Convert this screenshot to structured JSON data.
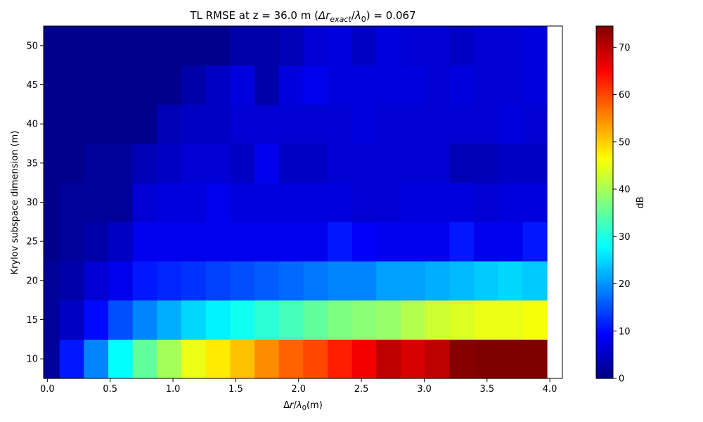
{
  "chart_data": {
    "type": "heatmap",
    "title": "TL RMSE at z = 36.0 m (Δr_exact/λ₀) = 0.067",
    "title_parts": {
      "prefix": "TL RMSE at z = 36.0 m (",
      "delta": "Δ",
      "r": "r",
      "sub_exact": "exact",
      "slash": "/",
      "lambda": "λ",
      "sub_zero": "0",
      "suffix": ") = 0.067"
    },
    "xlabel": "Δr/λ₀(m)",
    "xlabel_parts": {
      "main1": "Δ",
      "r": "r",
      "slash": "/",
      "lambda": "λ",
      "sub": "0",
      "tail": "(m)"
    },
    "ylabel": "Krylov subspace dimension (m)",
    "colorbar_label": "dB",
    "colormap": "jet",
    "clim": [
      0,
      74.5
    ],
    "xlim": [
      -0.03,
      4.1
    ],
    "ylim": [
      7.5,
      52.5
    ],
    "x_start": 0.0,
    "x_step": 0.194,
    "x_ticks": [
      "0.0",
      "0.5",
      "1.0",
      "1.5",
      "2.0",
      "2.5",
      "3.0",
      "3.5",
      "4.0"
    ],
    "x_tick_values": [
      0.0,
      0.5,
      1.0,
      1.5,
      2.0,
      2.5,
      3.0,
      3.5,
      4.0
    ],
    "y_ticks": [
      "10",
      "15",
      "20",
      "25",
      "30",
      "35",
      "40",
      "45",
      "50"
    ],
    "y_tick_values": [
      10,
      15,
      20,
      25,
      30,
      35,
      40,
      45,
      50
    ],
    "colorbar_ticks": [
      "0",
      "10",
      "20",
      "30",
      "40",
      "50",
      "60",
      "70"
    ],
    "colorbar_tick_values": [
      0,
      10,
      20,
      30,
      40,
      50,
      60,
      70
    ],
    "y_rows": [
      10,
      15,
      20,
      25,
      30,
      35,
      40,
      45,
      50
    ],
    "z": [
      [
        2,
        11,
        19,
        28,
        35,
        40,
        45,
        48,
        51,
        55,
        58,
        60,
        63,
        66,
        70,
        68,
        70,
        74,
        76,
        78,
        80
      ],
      [
        2,
        5,
        10,
        15,
        19,
        22,
        25,
        27,
        29,
        31,
        33,
        35,
        37,
        38,
        39,
        41,
        43,
        44,
        45,
        45,
        46
      ],
      [
        2,
        3,
        6,
        8,
        11,
        12,
        13,
        14,
        15,
        16,
        17,
        18,
        19,
        19,
        21,
        21,
        22,
        23,
        24,
        25,
        24
      ],
      [
        1,
        2,
        3,
        5,
        8,
        8,
        8,
        8,
        8,
        8,
        8,
        8,
        11,
        9,
        8,
        8,
        8,
        11,
        8,
        8,
        11
      ],
      [
        1,
        2,
        2,
        2,
        6,
        7,
        7,
        8,
        7,
        7,
        7,
        7,
        7,
        6,
        6,
        7,
        7,
        7,
        6,
        7,
        7
      ],
      [
        1,
        1,
        2,
        2,
        4,
        5,
        6,
        6,
        5,
        8,
        5,
        5,
        6,
        6,
        6,
        6,
        6,
        4,
        4,
        5,
        5
      ],
      [
        1,
        1,
        1,
        1,
        1,
        4,
        5,
        5,
        6,
        6,
        6,
        6,
        6,
        7,
        6,
        6,
        6,
        6,
        6,
        7,
        6
      ],
      [
        1,
        1,
        1,
        1,
        1,
        1,
        3,
        5,
        7,
        3,
        7,
        8,
        7,
        7,
        7,
        7,
        6,
        7,
        6,
        6,
        7
      ],
      [
        1,
        1,
        1,
        1,
        1,
        1,
        1,
        1,
        3,
        3,
        4,
        6,
        7,
        5,
        7,
        6,
        6,
        5,
        6,
        6,
        7
      ]
    ]
  }
}
